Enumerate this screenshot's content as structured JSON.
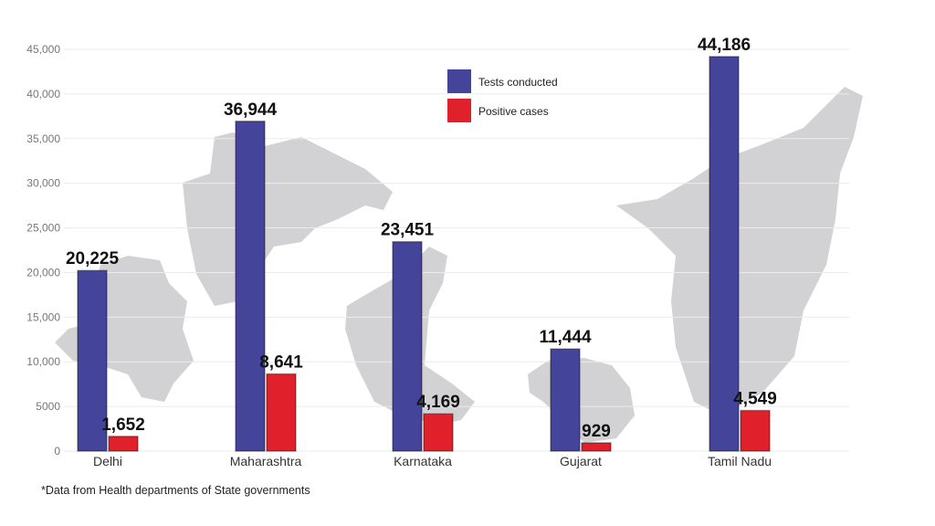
{
  "chart_data": {
    "type": "bar",
    "title": "",
    "xlabel": "",
    "ylabel": "",
    "ylim": [
      0,
      45000
    ],
    "yticks": [
      0,
      5000,
      10000,
      15000,
      20000,
      25000,
      30000,
      35000,
      40000,
      45000
    ],
    "ytick_labels": [
      "0",
      "5000",
      "10,000",
      "15,000",
      "20,000",
      "25,000",
      "30,000",
      "35,000",
      "40,000",
      "45,000"
    ],
    "grid": true,
    "legend_position": "top-center",
    "categories": [
      "Delhi",
      "Maharashtra",
      "Karnataka",
      "Gujarat",
      "Tamil Nadu"
    ],
    "series": [
      {
        "name": "Tests conducted",
        "color": "#43449a",
        "values": [
          20225,
          36944,
          23451,
          11444,
          44186
        ],
        "labels": [
          "20,225",
          "36,944",
          "23,451",
          "11,444",
          "44,186"
        ]
      },
      {
        "name": "Positive cases",
        "color": "#e0202a",
        "values": [
          1652,
          8641,
          4169,
          929,
          4549
        ],
        "labels": [
          "1,652",
          "8,641",
          "4,169",
          "929",
          "4,549"
        ]
      }
    ]
  },
  "footnote": "*Data from Health departments of State governments"
}
